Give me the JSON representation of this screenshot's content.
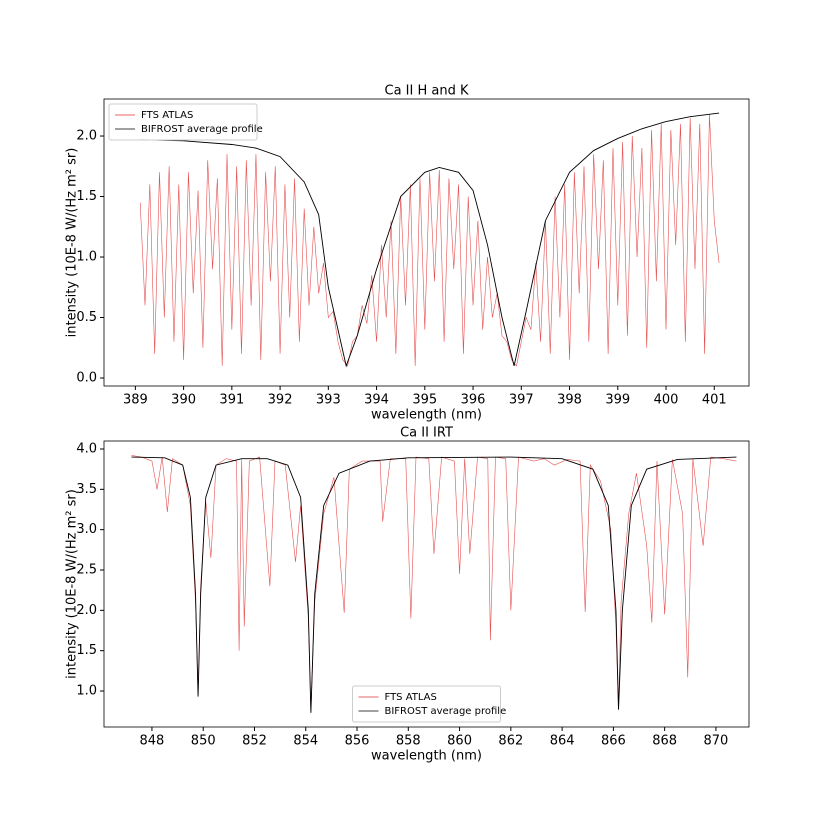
{
  "chart_data": [
    {
      "type": "line",
      "title": "Ca II H and K",
      "x_label": "wavelength (nm)",
      "y_label": "intensity (10E-8 W/(Hz m² sr)",
      "xlim": [
        388.35,
        401.72
      ],
      "ylim": [
        -0.066,
        2.306
      ],
      "xticks": [
        389,
        390,
        391,
        392,
        393,
        394,
        395,
        396,
        397,
        398,
        399,
        400,
        401
      ],
      "yticks": [
        {
          "value": 0,
          "label": "0.0"
        },
        0.5,
        {
          "value": 1,
          "label": "1.0"
        },
        1.5,
        {
          "value": 2,
          "label": "2.0"
        }
      ],
      "legend": "upper left",
      "series": [
        {
          "name": "FTS ATLAS",
          "color": "#e03030",
          "x": [
            389.1,
            389.2,
            389.3,
            389.4,
            389.5,
            389.6,
            389.7,
            389.8,
            389.9,
            390.0,
            390.1,
            390.2,
            390.3,
            390.4,
            390.5,
            390.6,
            390.7,
            390.8,
            390.9,
            391.0,
            391.1,
            391.2,
            391.3,
            391.4,
            391.5,
            391.6,
            391.7,
            391.8,
            391.9,
            392.0,
            392.1,
            392.2,
            392.3,
            392.4,
            392.5,
            392.6,
            392.7,
            392.8,
            392.9,
            393.0,
            393.1,
            393.2,
            393.3,
            393.4,
            393.5,
            393.6,
            393.7,
            393.8,
            393.9,
            394.0,
            394.1,
            394.2,
            394.3,
            394.4,
            394.5,
            394.6,
            394.7,
            394.8,
            394.9,
            395.0,
            395.1,
            395.2,
            395.3,
            395.4,
            395.5,
            395.6,
            395.7,
            395.8,
            395.9,
            396.0,
            396.1,
            396.2,
            396.3,
            396.4,
            396.5,
            396.6,
            396.7,
            396.8,
            396.9,
            397.0,
            397.1,
            397.2,
            397.3,
            397.4,
            397.5,
            397.6,
            397.7,
            397.8,
            397.9,
            398.0,
            398.1,
            398.2,
            398.3,
            398.4,
            398.5,
            398.6,
            398.7,
            398.8,
            398.9,
            399.0,
            399.1,
            399.2,
            399.3,
            399.4,
            399.5,
            399.6,
            399.7,
            399.8,
            399.9,
            400.0,
            400.1,
            400.2,
            400.3,
            400.4,
            400.5,
            400.6,
            400.7,
            400.8,
            400.9,
            401.0,
            401.1
          ],
          "values": [
            1.45,
            0.6,
            1.6,
            0.2,
            1.7,
            0.5,
            1.75,
            0.3,
            1.6,
            0.15,
            1.7,
            0.7,
            1.55,
            0.25,
            1.8,
            0.9,
            1.65,
            0.1,
            1.85,
            0.4,
            1.75,
            0.2,
            1.8,
            0.6,
            1.85,
            0.15,
            1.7,
            0.8,
            1.75,
            0.2,
            1.6,
            0.5,
            1.65,
            0.3,
            1.4,
            0.6,
            1.25,
            0.7,
            0.95,
            0.5,
            0.55,
            0.3,
            0.15,
            0.1,
            0.3,
            0.35,
            0.6,
            0.45,
            0.85,
            0.3,
            1.1,
            0.5,
            1.3,
            0.2,
            1.5,
            0.6,
            1.6,
            0.1,
            1.65,
            0.4,
            1.7,
            0.8,
            1.72,
            0.3,
            1.65,
            0.9,
            1.6,
            0.2,
            1.5,
            0.6,
            1.3,
            0.4,
            1.0,
            0.5,
            0.7,
            0.35,
            0.3,
            0.15,
            0.1,
            0.3,
            0.5,
            0.4,
            0.95,
            0.3,
            1.3,
            0.2,
            1.5,
            0.5,
            1.6,
            0.15,
            1.7,
            0.7,
            1.75,
            0.3,
            1.85,
            0.9,
            1.8,
            0.2,
            1.9,
            0.6,
            1.95,
            0.35,
            2.0,
            1.0,
            1.9,
            0.25,
            2.05,
            0.8,
            2.1,
            0.4,
            2.05,
            1.1,
            2.1,
            0.3,
            2.15,
            0.9,
            2.1,
            0.2,
            2.18,
            1.3,
            0.95
          ]
        },
        {
          "name": "BIFROST average profile",
          "color": "#000000",
          "x": [
            389.1,
            390,
            391,
            391.5,
            392,
            392.5,
            392.8,
            393,
            393.2,
            393.37,
            393.6,
            394,
            394.5,
            395,
            395.3,
            395.7,
            396,
            396.3,
            396.6,
            396.85,
            397.1,
            397.5,
            398,
            398.5,
            399,
            399.5,
            400,
            400.5,
            401.1
          ],
          "values": [
            1.97,
            1.96,
            1.93,
            1.9,
            1.83,
            1.62,
            1.35,
            0.75,
            0.4,
            0.1,
            0.35,
            0.9,
            1.5,
            1.7,
            1.74,
            1.7,
            1.55,
            1.1,
            0.5,
            0.1,
            0.55,
            1.3,
            1.7,
            1.88,
            1.98,
            2.06,
            2.12,
            2.16,
            2.19
          ]
        }
      ]
    },
    {
      "type": "line",
      "title": "Ca II IRT",
      "x_label": "wavelength (nm)",
      "y_label": "intensity (10E-8 W/(Hz m² sr)",
      "xlim": [
        846.13,
        871.29
      ],
      "ylim": [
        0.554,
        4.099
      ],
      "xticks": [
        848,
        850,
        852,
        854,
        856,
        858,
        860,
        862,
        864,
        866,
        868,
        870
      ],
      "yticks": [
        {
          "value": 1,
          "label": "1.0"
        },
        1.5,
        {
          "value": 2,
          "label": "2.0"
        },
        2.5,
        {
          "value": 3,
          "label": "3.0"
        },
        3.5,
        {
          "value": 4,
          "label": "4.0"
        }
      ],
      "legend": "lower center",
      "series": [
        {
          "name": "FTS ATLAS",
          "color": "#e03030",
          "x": [
            847.2,
            847.6,
            848.0,
            848.2,
            848.4,
            848.6,
            848.8,
            849.2,
            849.5,
            849.7,
            849.8,
            849.9,
            850.1,
            850.3,
            850.5,
            850.9,
            851.3,
            851.4,
            851.5,
            851.6,
            851.8,
            852.2,
            852.6,
            852.8,
            853.2,
            853.6,
            853.8,
            854.1,
            854.2,
            854.35,
            854.7,
            855.1,
            855.5,
            855.7,
            856.2,
            856.9,
            857.0,
            857.3,
            857.9,
            858.1,
            858.3,
            858.8,
            859.0,
            859.3,
            859.8,
            860.0,
            860.2,
            860.4,
            860.7,
            861.1,
            861.2,
            861.4,
            861.8,
            862.0,
            862.3,
            862.9,
            863.3,
            863.7,
            864.2,
            864.7,
            864.9,
            865.1,
            865.5,
            865.9,
            866.1,
            866.2,
            866.3,
            866.6,
            866.9,
            867.3,
            867.5,
            867.7,
            868.0,
            868.3,
            868.7,
            868.9,
            869.1,
            869.5,
            869.8,
            870.3,
            870.8
          ],
          "values": [
            3.92,
            3.9,
            3.85,
            3.5,
            3.9,
            3.22,
            3.88,
            3.8,
            3.3,
            2.1,
            0.95,
            2.3,
            3.35,
            2.65,
            3.8,
            3.88,
            3.85,
            1.5,
            3.87,
            1.8,
            3.85,
            3.9,
            2.3,
            3.85,
            3.8,
            2.6,
            3.3,
            1.9,
            0.74,
            2.1,
            3.2,
            3.65,
            1.97,
            3.75,
            3.85,
            3.85,
            3.1,
            3.88,
            3.88,
            1.9,
            3.9,
            3.88,
            2.7,
            3.9,
            3.85,
            2.45,
            3.88,
            2.7,
            3.9,
            3.88,
            1.63,
            3.9,
            3.88,
            2.0,
            3.9,
            3.85,
            3.88,
            3.8,
            3.87,
            3.85,
            1.98,
            3.8,
            3.6,
            3.0,
            1.8,
            0.77,
            2.1,
            3.2,
            3.7,
            2.8,
            1.85,
            3.85,
            1.95,
            3.87,
            3.2,
            1.17,
            3.88,
            2.8,
            3.9,
            3.88,
            3.85
          ]
        },
        {
          "name": "BIFROST average profile",
          "color": "#000000",
          "x": [
            847.2,
            848.5,
            849.2,
            849.5,
            849.7,
            849.8,
            849.9,
            850.1,
            850.5,
            851.5,
            852.5,
            853.3,
            853.8,
            854.1,
            854.2,
            854.35,
            854.7,
            855.3,
            856.5,
            858,
            862,
            864,
            865.2,
            865.8,
            866.1,
            866.2,
            866.35,
            866.7,
            867.3,
            868.5,
            870.8
          ],
          "values": [
            3.9,
            3.89,
            3.8,
            3.4,
            2.2,
            0.93,
            2.2,
            3.4,
            3.8,
            3.88,
            3.88,
            3.8,
            3.4,
            2.0,
            0.73,
            2.2,
            3.3,
            3.7,
            3.85,
            3.89,
            3.9,
            3.88,
            3.75,
            3.3,
            2.0,
            0.77,
            2.0,
            3.3,
            3.75,
            3.87,
            3.9
          ]
        }
      ]
    }
  ]
}
